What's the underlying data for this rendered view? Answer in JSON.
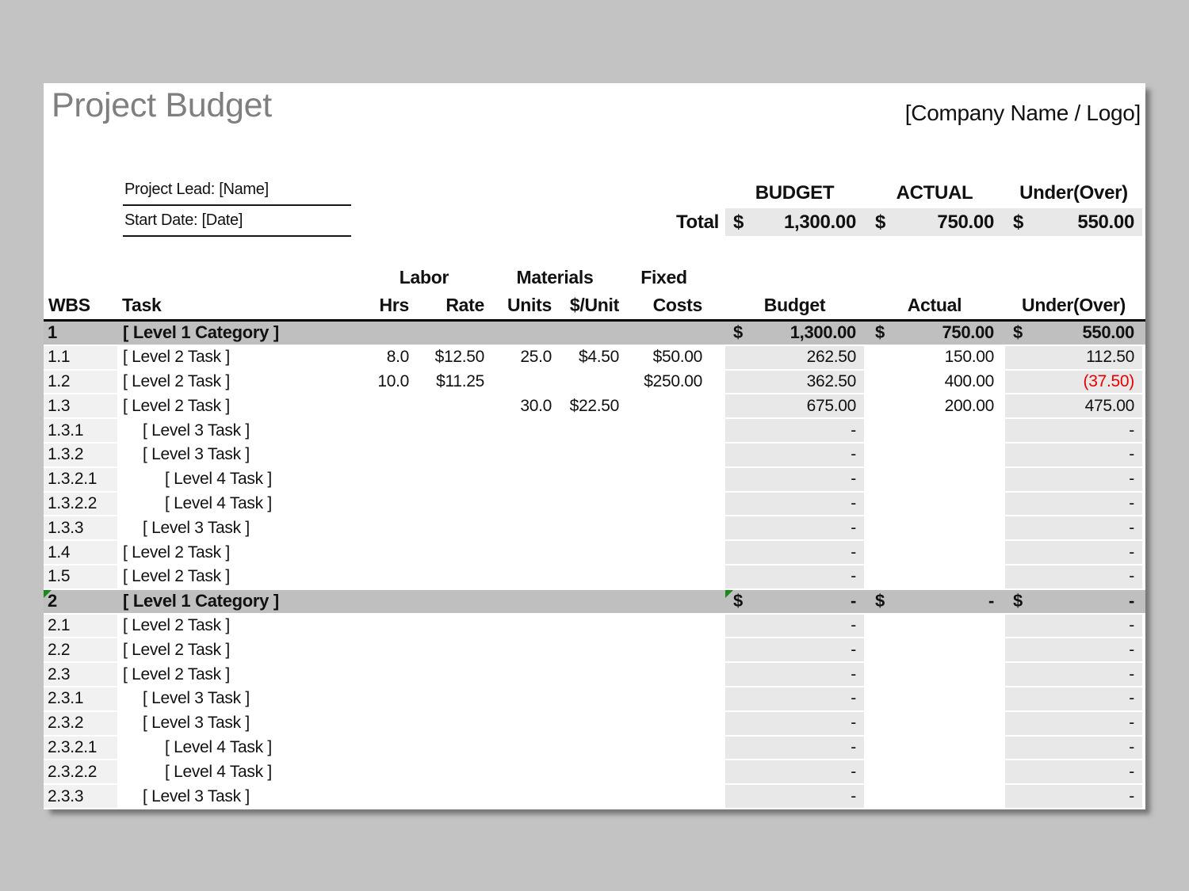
{
  "page": {
    "title": "Project Budget",
    "company_placeholder": "[Company Name / Logo]"
  },
  "info": {
    "project_lead": "Project Lead: [Name]",
    "start_date": "Start Date: [Date]"
  },
  "summary": {
    "headers": {
      "budget": "BUDGET",
      "actual": "ACTUAL",
      "under_over": "Under(Over)"
    },
    "total_label": "Total",
    "currency": "$",
    "budget": "1,300.00",
    "actual": "750.00",
    "under_over": "550.00"
  },
  "table": {
    "group_headers": {
      "labor": "Labor",
      "materials": "Materials",
      "fixed": "Fixed"
    },
    "col_headers": {
      "wbs": "WBS",
      "task": "Task",
      "hrs": "Hrs",
      "rate": "Rate",
      "units": "Units",
      "unit_cost": "$/Unit",
      "costs": "Costs",
      "budget": "Budget",
      "actual": "Actual",
      "under_over": "Under(Over)"
    },
    "rows": [
      {
        "wbs": "1",
        "task": "[ Level 1 Category ]",
        "level": 1,
        "type": "category",
        "dollar": true,
        "budget": "1,300.00",
        "actual": "750.00",
        "under": "550.00"
      },
      {
        "wbs": "1.1",
        "task": "[ Level 2 Task ]",
        "level": 2,
        "type": "task",
        "hrs": "8.0",
        "rate": "$12.50",
        "units": "25.0",
        "unit_cost": "$4.50",
        "fixed": "$50.00",
        "budget": "262.50",
        "actual": "150.00",
        "under": "112.50"
      },
      {
        "wbs": "1.2",
        "task": "[ Level 2 Task ]",
        "level": 2,
        "type": "task",
        "hrs": "10.0",
        "rate": "$11.25",
        "fixed": "$250.00",
        "budget": "362.50",
        "actual": "400.00",
        "under": "(37.50)",
        "under_neg": true
      },
      {
        "wbs": "1.3",
        "task": "[ Level 2 Task ]",
        "level": 2,
        "type": "task",
        "units": "30.0",
        "unit_cost": "$22.50",
        "budget": "675.00",
        "actual": "200.00",
        "under": "475.00"
      },
      {
        "wbs": "1.3.1",
        "task": "[ Level 3 Task ]",
        "level": 3,
        "type": "task",
        "budget": "-",
        "under": "-"
      },
      {
        "wbs": "1.3.2",
        "task": "[ Level 3 Task ]",
        "level": 3,
        "type": "task",
        "budget": "-",
        "under": "-"
      },
      {
        "wbs": "1.3.2.1",
        "task": "[ Level 4 Task ]",
        "level": 4,
        "type": "task",
        "budget": "-",
        "under": "-"
      },
      {
        "wbs": "1.3.2.2",
        "task": "[ Level 4 Task ]",
        "level": 4,
        "type": "task",
        "budget": "-",
        "under": "-"
      },
      {
        "wbs": "1.3.3",
        "task": "[ Level 3 Task ]",
        "level": 3,
        "type": "task",
        "budget": "-",
        "under": "-"
      },
      {
        "wbs": "1.4",
        "task": "[ Level 2 Task ]",
        "level": 2,
        "type": "task",
        "budget": "-",
        "under": "-"
      },
      {
        "wbs": "1.5",
        "task": "[ Level 2 Task ]",
        "level": 2,
        "type": "task",
        "budget": "-",
        "under": "-"
      },
      {
        "wbs": "2",
        "task": "[ Level 1 Category ]",
        "level": 1,
        "type": "category",
        "dollar": true,
        "budget": "-",
        "actual": "-",
        "under": "-",
        "flags": [
          "wbs",
          "budget"
        ]
      },
      {
        "wbs": "2.1",
        "task": "[ Level 2 Task ]",
        "level": 2,
        "type": "task",
        "budget": "-",
        "under": "-"
      },
      {
        "wbs": "2.2",
        "task": "[ Level 2 Task ]",
        "level": 2,
        "type": "task",
        "budget": "-",
        "under": "-"
      },
      {
        "wbs": "2.3",
        "task": "[ Level 2 Task ]",
        "level": 2,
        "type": "task",
        "budget": "-",
        "under": "-"
      },
      {
        "wbs": "2.3.1",
        "task": "[ Level 3 Task ]",
        "level": 3,
        "type": "task",
        "budget": "-",
        "under": "-"
      },
      {
        "wbs": "2.3.2",
        "task": "[ Level 3 Task ]",
        "level": 3,
        "type": "task",
        "budget": "-",
        "under": "-"
      },
      {
        "wbs": "2.3.2.1",
        "task": "[ Level 4 Task ]",
        "level": 4,
        "type": "task",
        "budget": "-",
        "under": "-"
      },
      {
        "wbs": "2.3.2.2",
        "task": "[ Level 4 Task ]",
        "level": 4,
        "type": "task",
        "budget": "-",
        "under": "-"
      },
      {
        "wbs": "2.3.3",
        "task": "[ Level 3 Task ]",
        "level": 3,
        "type": "task",
        "budget": "-",
        "under": "-"
      }
    ]
  },
  "colors": {
    "backdrop": "#c3c3c3",
    "sheet": "#ffffff",
    "title_gray": "#7f7f7f",
    "category_row": "#bfbfbf",
    "column_shade": "#e8e8e8",
    "wbs_shade": "#f1f1f1",
    "negative_red": "#e90000",
    "indicator_green": "#188a18",
    "border_black": "#000000"
  }
}
